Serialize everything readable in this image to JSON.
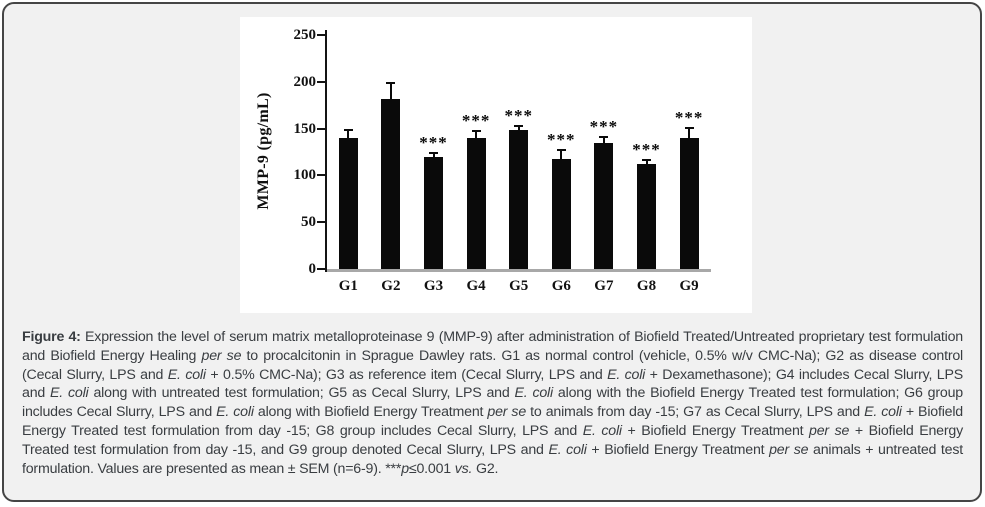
{
  "chart_data": {
    "type": "bar",
    "title": "",
    "xlabel": "",
    "ylabel": "MMP-9 (pg/mL)",
    "ylim": [
      0,
      250
    ],
    "yticks": [
      0,
      50,
      100,
      150,
      200,
      250
    ],
    "categories": [
      "G1",
      "G2",
      "G3",
      "G4",
      "G5",
      "G6",
      "G7",
      "G8",
      "G9"
    ],
    "series": [
      {
        "name": "MMP-9",
        "values": [
          140,
          182,
          120,
          140,
          148,
          118,
          135,
          112,
          140
        ],
        "errors": [
          10,
          18,
          5,
          8,
          6,
          10,
          7,
          6,
          12
        ],
        "significance": [
          "",
          "",
          "***",
          "***",
          "***",
          "***",
          "***",
          "***",
          "***"
        ]
      }
    ],
    "bar_color": "#0a0a0a",
    "error_bar_color": "#0a0a0a",
    "axis_color": "#141414",
    "baseline_color": "#a8a8a8",
    "grid": false,
    "legend": "none"
  },
  "caption": {
    "segments": [
      {
        "t": "Figure 4:",
        "b": true
      },
      {
        "t": " Expression the level of serum matrix metalloproteinase 9 (MMP-9) after administration of Biofield Treated/Untreated proprietary test formulation and Biofield Energy Healing "
      },
      {
        "t": "per se",
        "i": true
      },
      {
        "t": " to procalcitonin in Sprague Dawley rats. G1 as normal control (vehicle, 0.5% w/v CMC-Na); G2 as disease control (Cecal Slurry, LPS and "
      },
      {
        "t": "E. coli",
        "i": true
      },
      {
        "t": " + 0.5% CMC-Na); G3 as reference item (Cecal Slurry, LPS and "
      },
      {
        "t": "E. coli",
        "i": true
      },
      {
        "t": " + Dexamethasone); G4 includes Cecal Slurry, LPS and "
      },
      {
        "t": "E. coli",
        "i": true
      },
      {
        "t": " along with untreated test formulation; G5 as Cecal Slurry, LPS and "
      },
      {
        "t": "E. coli",
        "i": true
      },
      {
        "t": " along with the Biofield Energy Treated test formulation; G6 group includes Cecal Slurry, LPS and "
      },
      {
        "t": "E. coli",
        "i": true
      },
      {
        "t": " along with Biofield Energy Treatment "
      },
      {
        "t": "per se",
        "i": true
      },
      {
        "t": " to animals from day -15; G7 as Cecal Slurry, LPS and "
      },
      {
        "t": "E. coli",
        "i": true
      },
      {
        "t": " + Biofield Energy Treated test formulation from day -15; G8 group includes Cecal Slurry, LPS and "
      },
      {
        "t": "E. coli",
        "i": true
      },
      {
        "t": " + Biofield Energy Treatment "
      },
      {
        "t": "per se",
        "i": true
      },
      {
        "t": " + Biofield Energy Treated test formulation from day -15, and G9 group denoted Cecal Slurry, LPS and "
      },
      {
        "t": "E. coli",
        "i": true
      },
      {
        "t": " + Biofield Energy Treatment "
      },
      {
        "t": "per se",
        "i": true
      },
      {
        "t": " animals + untreated test formulation. Values are presented as mean ± SEM (n=6-9). ***"
      },
      {
        "t": "p",
        "i": true
      },
      {
        "t": "≤0.001 "
      },
      {
        "t": "vs.",
        "i": true
      },
      {
        "t": " G2."
      }
    ]
  }
}
